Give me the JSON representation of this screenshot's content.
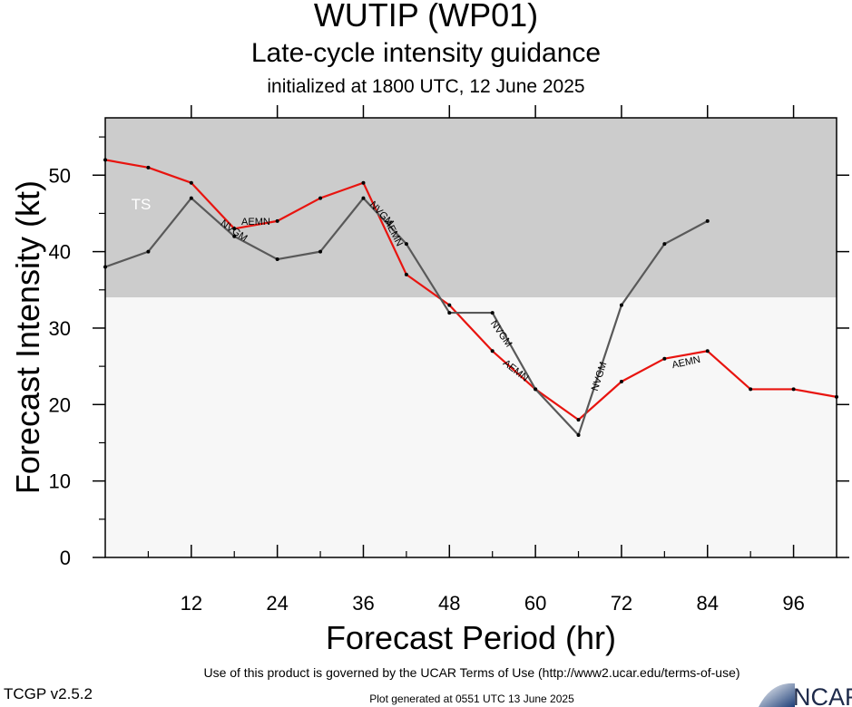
{
  "header": {
    "title": "WUTIP (WP01)",
    "subtitle": "Late-cycle intensity guidance",
    "initialized": "initialized at 1800 UTC, 12 June 2025"
  },
  "footer": {
    "terms": "Use of this product is governed by the UCAR Terms of Use (http://www2.ucar.edu/terms-of-use)",
    "version": "TCGP v2.5.2",
    "generated": "Plot generated at 0551 UTC   13 June 2025",
    "logo_text": "NCAR"
  },
  "chart_data": {
    "type": "line",
    "xlabel": "Forecast Period (hr)",
    "ylabel": "Forecast Intensity (kt)",
    "xlim": [
      0,
      102
    ],
    "ylim": [
      0,
      57.5
    ],
    "xticks": [
      12,
      24,
      36,
      48,
      60,
      72,
      84,
      96
    ],
    "yticks": [
      0,
      10,
      20,
      30,
      40,
      50
    ],
    "bands": [
      {
        "label": "TS",
        "from": 34,
        "to": 57.5,
        "color": "#cccccc"
      },
      {
        "label": "",
        "from": 0,
        "to": 34,
        "color": "#f7f7f7"
      }
    ],
    "series": [
      {
        "name": "AEMN",
        "color": "#e8140f",
        "x": [
          0,
          6,
          12,
          18,
          24,
          30,
          36,
          42,
          48,
          54,
          60,
          66,
          72,
          78,
          84,
          90,
          96,
          102
        ],
        "y": [
          52,
          51,
          49,
          43,
          44,
          47,
          49,
          37,
          33,
          27,
          22,
          18,
          23,
          26,
          27,
          22,
          22,
          21
        ],
        "label_positions": [
          {
            "x": 21,
            "y": 44,
            "angle": 0
          },
          {
            "x": 40.3,
            "y": 42.5,
            "angle": 63
          },
          {
            "x": 57.3,
            "y": 24.5,
            "angle": 38
          },
          {
            "x": 81,
            "y": 25.6,
            "angle": -12
          }
        ]
      },
      {
        "name": "NVGM",
        "color": "#595959",
        "x": [
          0,
          6,
          12,
          18,
          24,
          30,
          36,
          42,
          48,
          54,
          60,
          66,
          72,
          78,
          84
        ],
        "y": [
          38,
          40,
          47,
          42,
          39,
          40,
          47,
          41,
          32,
          32,
          22,
          16,
          33,
          41,
          44
        ],
        "label_positions": [
          {
            "x": 18,
            "y": 42.8,
            "angle": 35
          },
          {
            "x": 38.6,
            "y": 45,
            "angle": 47
          },
          {
            "x": 55.3,
            "y": 29.3,
            "angle": 55
          },
          {
            "x": 68.8,
            "y": 23.7,
            "angle": -72
          }
        ]
      }
    ]
  }
}
